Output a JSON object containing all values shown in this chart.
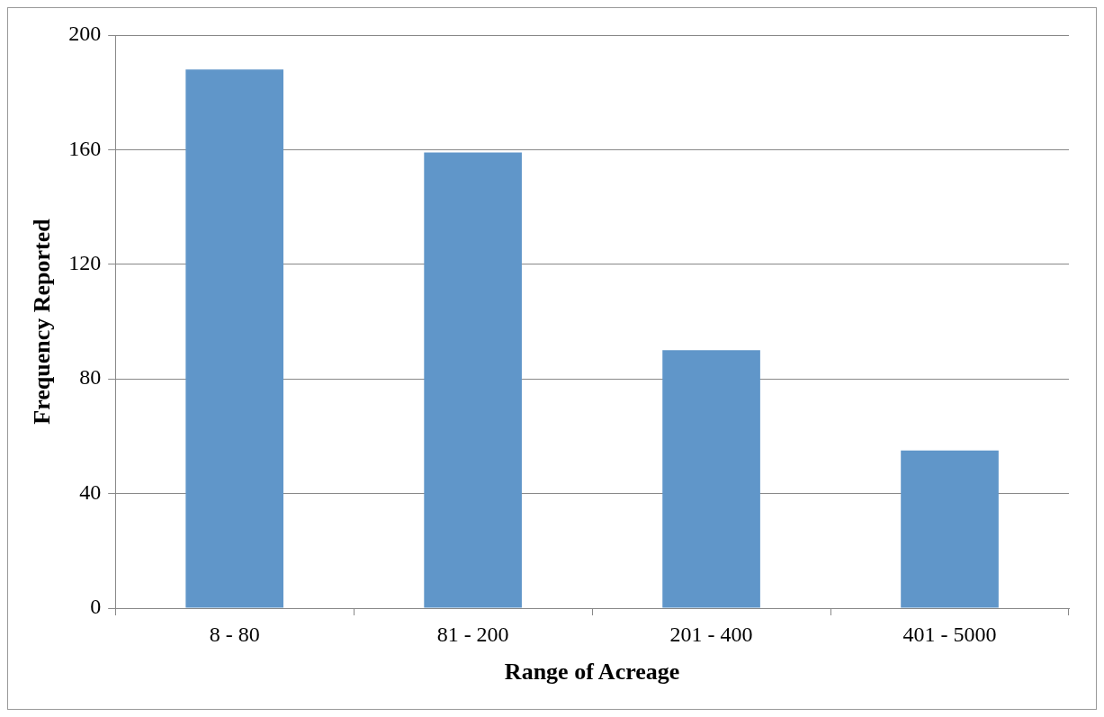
{
  "chart_data": {
    "type": "bar",
    "xlabel": "Range of Acreage",
    "ylabel": "Frequency Reported",
    "categories": [
      "8 - 80",
      "81 - 200",
      "201 - 400",
      "401 - 5000"
    ],
    "values": [
      188,
      159,
      90,
      55
    ],
    "color": "#6096c9",
    "ylim": [
      0,
      200
    ],
    "yticks": [
      0,
      40,
      80,
      120,
      160,
      200
    ],
    "grid": "y",
    "legend": false
  }
}
